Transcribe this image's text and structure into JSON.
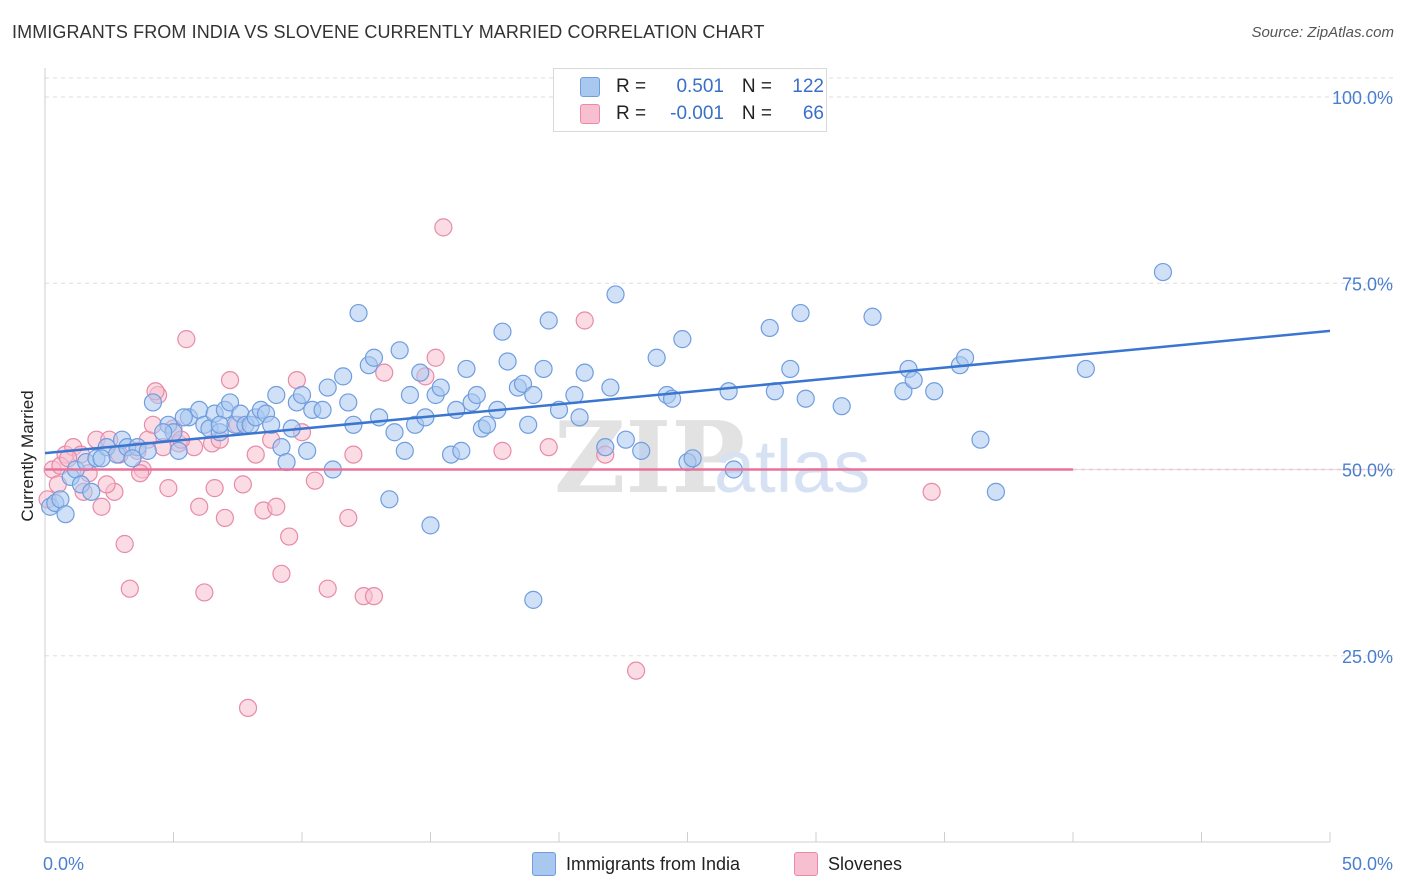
{
  "title": "IMMIGRANTS FROM INDIA VS SLOVENE CURRENTLY MARRIED CORRELATION CHART",
  "source": "Source: ZipAtlas.com",
  "watermark": {
    "zip": "ZIP",
    "atlas": "atlas"
  },
  "legend_stats": [
    {
      "r_label": "R =",
      "r_value": "0.501",
      "n_label": "N =",
      "n_value": "122",
      "color": "#a9c8f0",
      "border": "#6f9ddf"
    },
    {
      "r_label": "R =",
      "r_value": "-0.001",
      "n_label": "N =",
      "n_value": "66",
      "color": "#f8bfd0",
      "border": "#e88aa8"
    }
  ],
  "colors": {
    "blue_fill": "#a9c8f0",
    "blue_stroke": "#6f9ddf",
    "blue_line": "#3a75d0",
    "pink_fill": "#f8bfd0",
    "pink_stroke": "#e88aa8",
    "pink_line": "#e8739a",
    "axis_text": "#4a7fd0"
  },
  "chart_data": {
    "type": "scatter",
    "title": "IMMIGRANTS FROM INDIA VS SLOVENE CURRENTLY MARRIED CORRELATION CHART",
    "xlabel": "",
    "ylabel": "Currently Married",
    "xlim": [
      0,
      50
    ],
    "ylim": [
      0,
      102
    ],
    "x_tick_labels": [
      "0.0%",
      "50.0%"
    ],
    "y_tick_labels": [
      "100.0%",
      "75.0%",
      "50.0%",
      "25.0%"
    ],
    "y_tick_values": [
      100,
      75,
      50,
      25
    ],
    "grid": true,
    "legend_position": "bottom-center",
    "series": [
      {
        "name": "Immigrants from India",
        "trend": {
          "x0": 0,
          "y0": 52.2,
          "x1": 50,
          "y1": 68.6
        },
        "points": [
          [
            0.2,
            45
          ],
          [
            0.4,
            45.5
          ],
          [
            0.6,
            46
          ],
          [
            0.8,
            44
          ],
          [
            1,
            49
          ],
          [
            1.2,
            50
          ],
          [
            1.4,
            48
          ],
          [
            1.6,
            51
          ],
          [
            1.8,
            47
          ],
          [
            2,
            51.5
          ],
          [
            2.4,
            53
          ],
          [
            2.8,
            52
          ],
          [
            3.0,
            54
          ],
          [
            3.2,
            53
          ],
          [
            3.6,
            53
          ],
          [
            4.0,
            52.5
          ],
          [
            4.2,
            59
          ],
          [
            4.8,
            56
          ],
          [
            5,
            55
          ],
          [
            5.2,
            52.5
          ],
          [
            5.6,
            57
          ],
          [
            6.0,
            58
          ],
          [
            6.2,
            56
          ],
          [
            6.4,
            55.5
          ],
          [
            6.6,
            57.5
          ],
          [
            6.8,
            55
          ],
          [
            7.0,
            58
          ],
          [
            7.2,
            59
          ],
          [
            7.4,
            56
          ],
          [
            7.6,
            57.5
          ],
          [
            7.8,
            56
          ],
          [
            8.0,
            56
          ],
          [
            8.2,
            57
          ],
          [
            8.4,
            58
          ],
          [
            8.6,
            57.5
          ],
          [
            8.8,
            56
          ],
          [
            9.0,
            60
          ],
          [
            9.2,
            53
          ],
          [
            9.4,
            51
          ],
          [
            9.8,
            59
          ],
          [
            10.0,
            60
          ],
          [
            10.2,
            52.5
          ],
          [
            10.4,
            58
          ],
          [
            10.8,
            58
          ],
          [
            11.0,
            61
          ],
          [
            11.2,
            50
          ],
          [
            11.6,
            62.5
          ],
          [
            11.8,
            59
          ],
          [
            12.0,
            56
          ],
          [
            12.2,
            71
          ],
          [
            12.6,
            64
          ],
          [
            12.8,
            65
          ],
          [
            13.0,
            57
          ],
          [
            13.4,
            46
          ],
          [
            13.6,
            55
          ],
          [
            13.8,
            66
          ],
          [
            14.0,
            52.5
          ],
          [
            14.2,
            60
          ],
          [
            14.4,
            56
          ],
          [
            14.6,
            63
          ],
          [
            14.8,
            57
          ],
          [
            15.0,
            42.5
          ],
          [
            15.2,
            60
          ],
          [
            15.4,
            61
          ],
          [
            15.8,
            52
          ],
          [
            16.0,
            58
          ],
          [
            16.2,
            52.5
          ],
          [
            16.4,
            63.5
          ],
          [
            16.6,
            59
          ],
          [
            16.8,
            60
          ],
          [
            17.0,
            55.5
          ],
          [
            17.2,
            56
          ],
          [
            17.6,
            58
          ],
          [
            17.8,
            68.5
          ],
          [
            18.0,
            64.5
          ],
          [
            18.4,
            61
          ],
          [
            18.6,
            61.5
          ],
          [
            18.8,
            56
          ],
          [
            19.0,
            32.5
          ],
          [
            19.4,
            63.5
          ],
          [
            19.6,
            70
          ],
          [
            19.0,
            60
          ],
          [
            20.0,
            58
          ],
          [
            20.6,
            60
          ],
          [
            20.8,
            57
          ],
          [
            21.0,
            63
          ],
          [
            21.8,
            53
          ],
          [
            22,
            61
          ],
          [
            22.2,
            73.5
          ],
          [
            22.6,
            54
          ],
          [
            23.2,
            52.5
          ],
          [
            23.8,
            65
          ],
          [
            24.2,
            60
          ],
          [
            24.4,
            59.5
          ],
          [
            24.8,
            67.5
          ],
          [
            25.0,
            51
          ],
          [
            25.2,
            51.5
          ],
          [
            26.8,
            50
          ],
          [
            26.6,
            60.5
          ],
          [
            28.2,
            69
          ],
          [
            28.4,
            60.5
          ],
          [
            29.0,
            63.5
          ],
          [
            29.4,
            71
          ],
          [
            29.6,
            59.5
          ],
          [
            31.0,
            58.5
          ],
          [
            32.2,
            70.5
          ],
          [
            33.4,
            60.5
          ],
          [
            33.6,
            63.5
          ],
          [
            33.8,
            62
          ],
          [
            34.6,
            60.5
          ],
          [
            35.6,
            64
          ],
          [
            35.8,
            65
          ],
          [
            36.4,
            54
          ],
          [
            37.0,
            47
          ],
          [
            40.5,
            63.5
          ],
          [
            43.5,
            76.5
          ],
          [
            4.6,
            55
          ],
          [
            6.8,
            56
          ],
          [
            3.4,
            51.5
          ],
          [
            5.4,
            57
          ],
          [
            9.6,
            55.5
          ],
          [
            2.2,
            51.5
          ]
        ]
      },
      {
        "name": "Slovenes",
        "trend": {
          "x0": 0,
          "y0": 50,
          "x1": 40,
          "y1": 50
        },
        "points": [
          [
            0.1,
            46
          ],
          [
            0.3,
            50
          ],
          [
            0.5,
            48
          ],
          [
            0.8,
            52
          ],
          [
            1.1,
            53
          ],
          [
            1.4,
            52
          ],
          [
            1.7,
            49.5
          ],
          [
            2.0,
            54
          ],
          [
            2.2,
            45
          ],
          [
            2.5,
            54
          ],
          [
            2.7,
            47
          ],
          [
            2.9,
            52
          ],
          [
            3.1,
            40
          ],
          [
            3.3,
            34
          ],
          [
            3.6,
            52.5
          ],
          [
            3.8,
            50
          ],
          [
            4.0,
            54
          ],
          [
            4.2,
            56
          ],
          [
            4.4,
            60
          ],
          [
            4.6,
            53
          ],
          [
            4.8,
            47.5
          ],
          [
            5.0,
            55.5
          ],
          [
            5.2,
            53.5
          ],
          [
            5.5,
            67.5
          ],
          [
            5.8,
            53
          ],
          [
            6.0,
            45
          ],
          [
            6.2,
            33.5
          ],
          [
            6.5,
            53.5
          ],
          [
            6.8,
            54
          ],
          [
            7.0,
            43.5
          ],
          [
            7.2,
            62
          ],
          [
            7.5,
            56
          ],
          [
            7.7,
            48
          ],
          [
            7.9,
            18
          ],
          [
            8.2,
            52
          ],
          [
            8.5,
            44.5
          ],
          [
            8.8,
            54
          ],
          [
            9.0,
            45
          ],
          [
            9.2,
            36
          ],
          [
            9.5,
            41
          ],
          [
            9.8,
            62
          ],
          [
            10.0,
            55
          ],
          [
            10.5,
            48.5
          ],
          [
            11.0,
            34
          ],
          [
            11.8,
            43.5
          ],
          [
            12.0,
            52
          ],
          [
            12.4,
            33
          ],
          [
            12.8,
            33
          ],
          [
            13.2,
            63
          ],
          [
            14.8,
            62.5
          ],
          [
            15.2,
            65
          ],
          [
            15.5,
            82.5
          ],
          [
            17.8,
            52.5
          ],
          [
            19.6,
            53
          ],
          [
            21.0,
            70
          ],
          [
            21.8,
            52
          ],
          [
            23.0,
            23
          ],
          [
            4.3,
            60.5
          ],
          [
            1.5,
            47
          ],
          [
            0.6,
            50.5
          ],
          [
            3.7,
            49.5
          ],
          [
            6.6,
            47.5
          ],
          [
            2.4,
            48
          ],
          [
            5.3,
            54
          ],
          [
            0.9,
            51.5
          ],
          [
            34.5,
            47
          ]
        ]
      }
    ]
  }
}
